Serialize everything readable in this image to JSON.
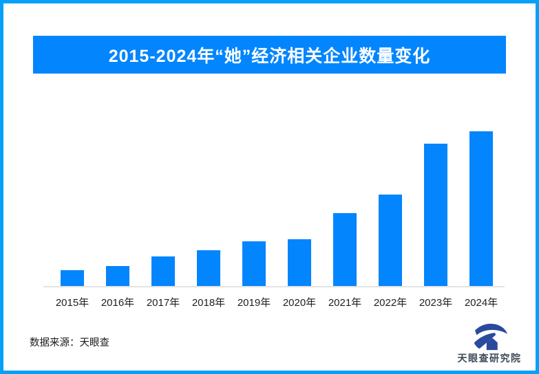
{
  "banner": {
    "title": "2015-2024年“她”经济相关企业数量变化"
  },
  "footer": {
    "source_text": "数据来源：天眼查"
  },
  "logo": {
    "text": "天眼查研究院"
  },
  "colors": {
    "brand_blue": "#0385fd",
    "border_blue": "#05a0f8",
    "axis_gray": "#e3e3e3",
    "logo_blue": "#2a4a9c",
    "title_text": "#ffffff",
    "label_text": "#1f1f1f"
  },
  "chart_data": {
    "type": "bar",
    "title": "2015-2024年“她”经济相关企业数量变化",
    "categories": [
      "2015年",
      "2016年",
      "2017年",
      "2018年",
      "2019年",
      "2020年",
      "2021年",
      "2022年",
      "2023年",
      "2024年"
    ],
    "values": [
      10,
      13,
      19,
      23,
      29,
      30,
      47,
      59,
      92,
      100
    ],
    "values_note": "y轴未标注数值；数值为相对柱高估计（2024年=100）",
    "xlabel": "",
    "ylabel": "",
    "ylim": [
      0,
      100
    ],
    "grid": false,
    "legend": false,
    "bar_color": "#0385fd"
  }
}
